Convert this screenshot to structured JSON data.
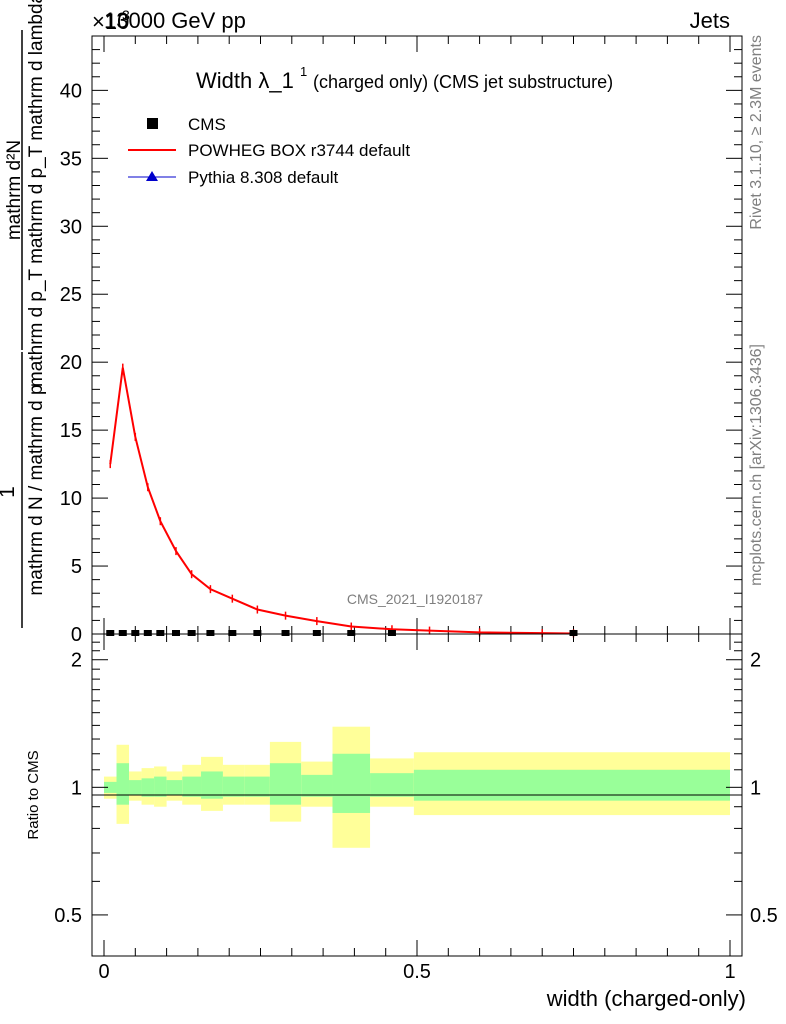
{
  "header": {
    "left": "13000 GeV pp",
    "right": "Jets",
    "exponent": "×10",
    "exponent_power": "3"
  },
  "side_labels": {
    "rivet": "Rivet 3.1.10, ≥ 2.3M events",
    "mcplots": "mcplots.cern.ch [arXiv:1306.3436]"
  },
  "chart_data": [
    {
      "type": "line",
      "title": "Width λ_1",
      "title_sup": "1",
      "subtitle": "(charged only) (CMS jet substructure)",
      "ylabel_numerator": "mathrm d²N",
      "ylabel_denominator": "mathrm d p_T mathrm d p_T mathrm d lambda",
      "ylabel_prefactor_num": "1",
      "ylabel_prefactor_den": "mathrm d N / mathrm d p",
      "y_scale_note": "×10³",
      "ylim": [
        0,
        44
      ],
      "yticks": [
        0,
        5,
        10,
        15,
        20,
        25,
        30,
        35,
        40
      ],
      "xlim": [
        0,
        1
      ],
      "watermark": "CMS_2021_I1920187",
      "legend": [
        {
          "label": "CMS",
          "marker": "square",
          "color": "#000000"
        },
        {
          "label": "POWHEG BOX r3744 default",
          "marker": "line",
          "color": "#ff0000"
        },
        {
          "label": "Pythia 8.308 default",
          "marker": "triangle",
          "color": "#0000cc"
        }
      ],
      "series": [
        {
          "name": "POWHEG BOX r3744 default",
          "color": "#ff0000",
          "x": [
            0.01,
            0.03,
            0.05,
            0.07,
            0.09,
            0.115,
            0.14,
            0.17,
            0.205,
            0.245,
            0.29,
            0.34,
            0.395,
            0.46,
            0.52,
            0.6,
            0.7,
            0.75
          ],
          "y": [
            12.5,
            19.6,
            14.5,
            10.8,
            8.3,
            6.1,
            4.4,
            3.3,
            2.6,
            1.8,
            1.35,
            0.95,
            0.55,
            0.35,
            0.25,
            0.12,
            0.06,
            0.04
          ]
        },
        {
          "name": "CMS",
          "color": "#000000",
          "x": [
            0.01,
            0.03,
            0.05,
            0.07,
            0.09,
            0.115,
            0.14,
            0.17,
            0.205,
            0.245,
            0.29,
            0.34,
            0.395,
            0.46,
            0.75
          ],
          "y": [
            0,
            0,
            0,
            0,
            0,
            0,
            0,
            0,
            0,
            0,
            0,
            0,
            0,
            0,
            0
          ]
        }
      ]
    },
    {
      "type": "area",
      "ylabel": "Ratio to CMS",
      "ylim": [
        0.4,
        2.3
      ],
      "yticks": [
        0.5,
        1,
        2
      ],
      "ytick_labels": [
        "0.5",
        "1",
        "2"
      ],
      "xlabel": "width (charged-only)",
      "xlim": [
        0,
        1
      ],
      "xticks": [
        0,
        0.5,
        1
      ],
      "xtick_labels": [
        "0",
        "0.5",
        "1"
      ],
      "bands": {
        "edges": [
          0,
          0.02,
          0.04,
          0.06,
          0.08,
          0.1,
          0.125,
          0.155,
          0.19,
          0.225,
          0.265,
          0.315,
          0.365,
          0.425,
          0.495,
          1.0
        ],
        "yellow_lo": [
          0.94,
          0.82,
          0.93,
          0.91,
          0.9,
          0.93,
          0.91,
          0.88,
          0.91,
          0.91,
          0.83,
          0.9,
          0.72,
          0.9,
          0.86
        ],
        "yellow_hi": [
          1.06,
          1.26,
          1.09,
          1.11,
          1.12,
          1.09,
          1.13,
          1.18,
          1.13,
          1.13,
          1.28,
          1.15,
          1.39,
          1.17,
          1.21
        ],
        "green_lo": [
          0.97,
          0.91,
          0.96,
          0.95,
          0.95,
          0.96,
          0.95,
          0.94,
          0.95,
          0.95,
          0.91,
          0.95,
          0.87,
          0.95,
          0.93
        ],
        "green_hi": [
          1.03,
          1.14,
          1.04,
          1.05,
          1.06,
          1.04,
          1.06,
          1.09,
          1.06,
          1.06,
          1.14,
          1.07,
          1.2,
          1.08,
          1.1
        ]
      }
    }
  ]
}
